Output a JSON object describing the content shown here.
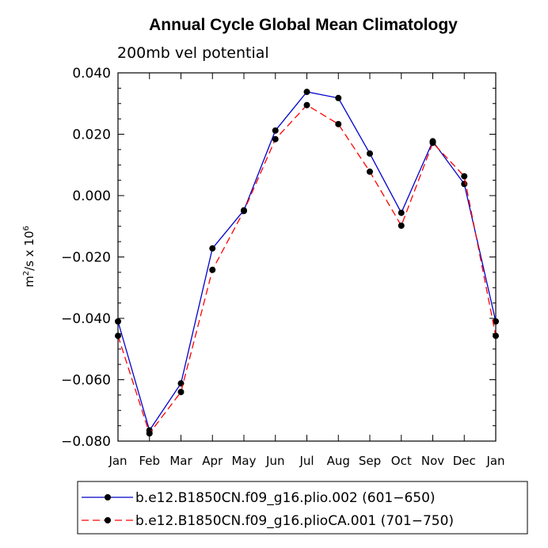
{
  "chart_data": {
    "type": "line",
    "title": "Annual Cycle Global Mean Climatology",
    "subtitle": "200mb vel potential",
    "ylabel_base": "m",
    "ylabel_exp1": "2",
    "ylabel_mid": "/s x 10",
    "ylabel_exp2": "6",
    "xlabel": "",
    "ylim": [
      -0.08,
      0.04
    ],
    "yticks": [
      "0.040",
      "0.020",
      "0.000",
      "−0.020",
      "−0.040",
      "−0.060",
      "−0.080"
    ],
    "ytick_values": [
      0.04,
      0.02,
      0.0,
      -0.02,
      -0.04,
      -0.06,
      -0.08
    ],
    "categories": [
      "Jan",
      "Feb",
      "Mar",
      "Apr",
      "May",
      "Jun",
      "Jul",
      "Aug",
      "Sep",
      "Oct",
      "Nov",
      "Dec",
      "Jan"
    ],
    "series": [
      {
        "name": "b.e12.B1850CN.f09_g16.plio.002 (601−650)",
        "color": "#0000cc",
        "dash": "solid",
        "values": [
          -0.041,
          -0.0765,
          -0.0612,
          -0.0172,
          -0.0048,
          0.0212,
          0.0338,
          0.0318,
          0.0137,
          -0.0056,
          0.0177,
          0.0038,
          -0.041
        ]
      },
      {
        "name": "b.e12.B1850CN.f09_g16.plioCA.001 (701−750)",
        "color": "#ff0000",
        "dash": "dashed",
        "values": [
          -0.0457,
          -0.0775,
          -0.064,
          -0.0242,
          -0.005,
          0.0184,
          0.0295,
          0.0233,
          0.0078,
          -0.0098,
          0.0172,
          0.0063,
          -0.0457
        ]
      }
    ],
    "legend_position": "bottom"
  }
}
